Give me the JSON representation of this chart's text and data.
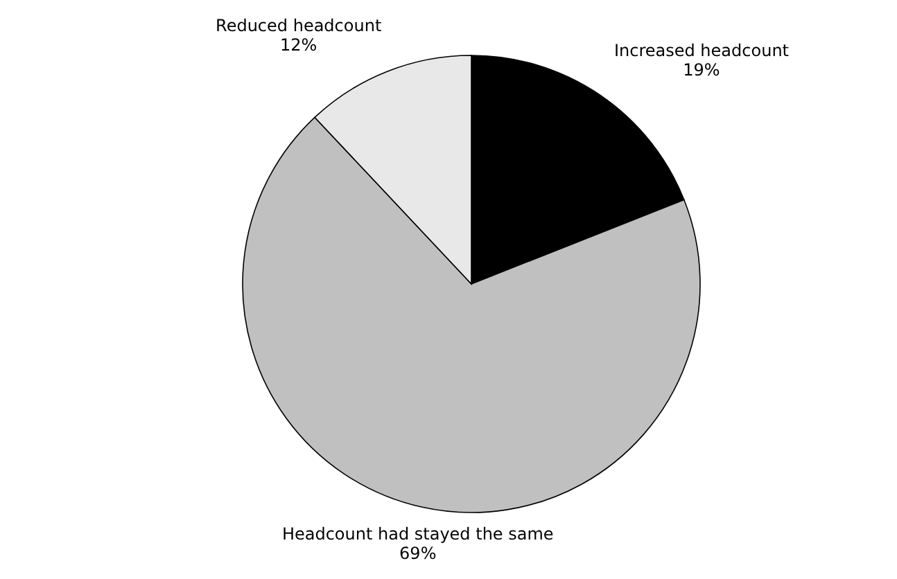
{
  "chart_data": {
    "type": "pie",
    "categories": [
      "Increased headcount",
      "Headcount had stayed the same",
      "Reduced headcount"
    ],
    "values": [
      19,
      69,
      12
    ],
    "colors": [
      "#000000",
      "#c0c0c0",
      "#e8e8e8"
    ],
    "value_labels": [
      "19%",
      "69%",
      "12%"
    ]
  }
}
